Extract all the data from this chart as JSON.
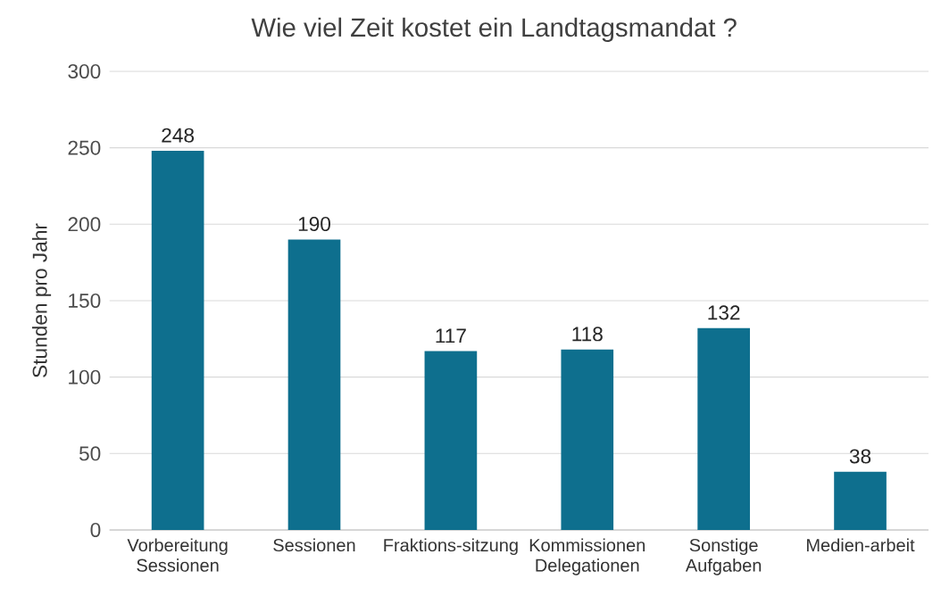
{
  "chart_data": {
    "type": "bar",
    "title": "Wie viel Zeit kostet ein Landtagsmandat ?",
    "ylabel": "Stunden pro Jahr",
    "categories": [
      "Vorbereitung Sessionen",
      "Sessionen",
      "Fraktions-sitzung",
      "Kommissionen Delegationen",
      "Sonstige Aufgaben",
      "Medien-arbeit"
    ],
    "values": [
      248,
      190,
      117,
      118,
      132,
      38
    ],
    "color": "#0e6f8e",
    "ylim": [
      0,
      300
    ],
    "yticks": [
      0,
      50,
      100,
      150,
      200,
      250,
      300
    ],
    "grid": "y",
    "data_labels": true
  }
}
